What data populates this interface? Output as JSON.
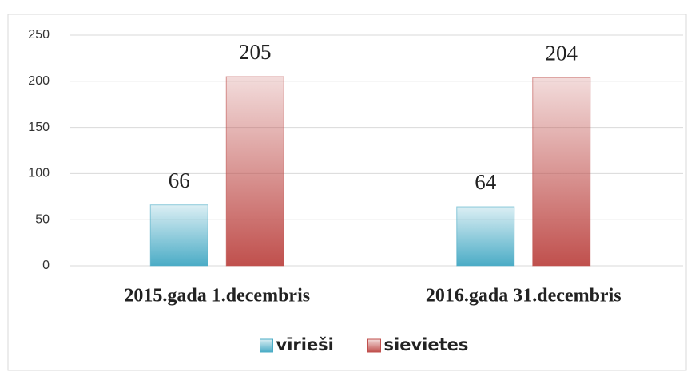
{
  "chart_data": {
    "type": "bar",
    "categories": [
      "2015.gada 1.decembris",
      "2016.gada 31.decembris"
    ],
    "series": [
      {
        "name": "vīrieši",
        "color": "#4bacc6",
        "values": [
          66,
          64
        ]
      },
      {
        "name": "sievietes",
        "color": "#c0504d",
        "values": [
          205,
          204
        ]
      }
    ],
    "ylim": [
      0,
      250
    ],
    "yticks": [
      0,
      50,
      100,
      150,
      200,
      250
    ],
    "grid": true,
    "legend": "bottom"
  }
}
